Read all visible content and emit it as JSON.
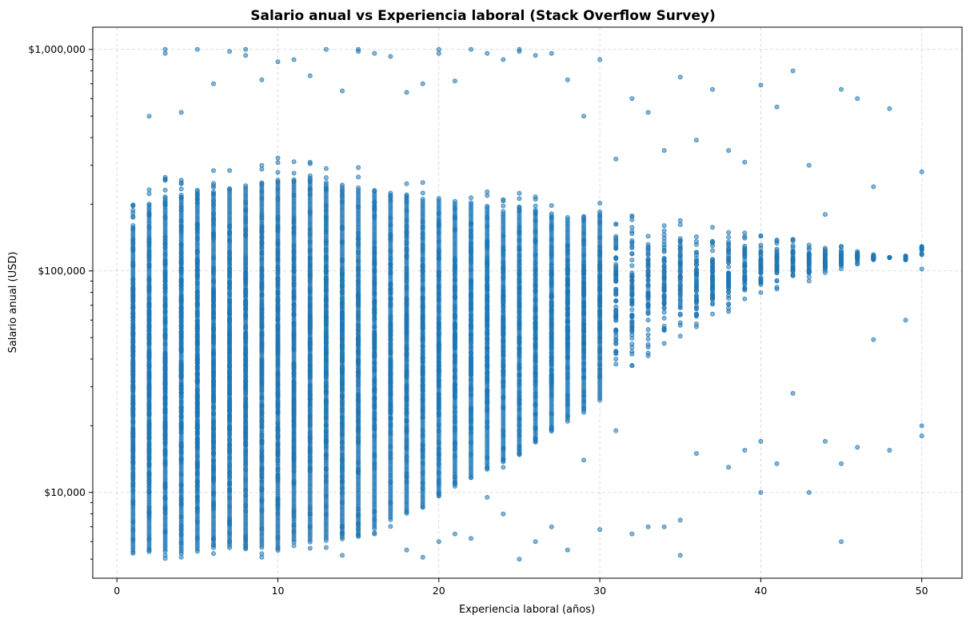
{
  "chart_data": {
    "type": "scatter",
    "title": "Salario anual vs Experiencia laboral (Stack Overflow Survey)",
    "xlabel": "Experiencia laboral (años)",
    "ylabel": "Salario anual (USD)",
    "xlim": [
      -1.5,
      52.5
    ],
    "ylim": [
      4100,
      1260000
    ],
    "yscale": "log",
    "grid": true,
    "x_ticks": [
      0,
      10,
      20,
      30,
      40,
      50
    ],
    "x_tick_labels": [
      "0",
      "10",
      "20",
      "30",
      "40",
      "50"
    ],
    "y_ticks": [
      10000,
      100000,
      1000000
    ],
    "y_tick_labels": [
      "$10,000",
      "$100,000",
      "$1,000,000"
    ],
    "color": "#1f77b4",
    "series": [
      {
        "x_values": [
          1,
          2,
          3,
          4,
          5,
          6,
          7,
          8,
          9,
          10,
          11,
          12,
          13,
          14,
          15,
          16,
          17,
          18,
          19,
          20,
          21,
          22,
          23,
          24,
          25,
          26,
          27,
          28,
          29,
          30,
          31,
          32,
          33,
          34,
          35,
          36,
          37,
          38,
          39,
          40,
          41,
          42,
          43,
          44,
          45,
          46,
          47,
          48,
          49,
          50
        ],
        "dense_min": [
          5000,
          5000,
          5000,
          5000,
          5000,
          5200,
          5200,
          5200,
          5200,
          5200,
          5500,
          5500,
          5600,
          5800,
          6000,
          6500,
          7000,
          7500,
          8000,
          9000,
          10000,
          11000,
          12000,
          13000,
          14000,
          16000,
          18000,
          20000,
          22000,
          25000,
          30000,
          35000,
          40000,
          45000,
          50000,
          55000,
          60000,
          65000,
          70000,
          75000,
          80000,
          85000,
          90000,
          95000,
          100000,
          105000,
          110000,
          115000,
          120000,
          100000
        ],
        "dense_max": [
          200000,
          250000,
          270000,
          280000,
          290000,
          290000,
          300000,
          310000,
          320000,
          330000,
          330000,
          330000,
          320000,
          310000,
          300000,
          290000,
          280000,
          270000,
          260000,
          260000,
          250000,
          240000,
          230000,
          220000,
          230000,
          220000,
          210000,
          200000,
          200000,
          210000,
          200000,
          190000,
          180000,
          175000,
          170000,
          160000,
          160000,
          155000,
          150000,
          150000,
          145000,
          140000,
          135000,
          130000,
          130000,
          125000,
          120000,
          115000,
          110000,
          150000
        ],
        "outliers": [
          [
            3,
            1000000
          ],
          [
            3,
            960000
          ],
          [
            5,
            1000000
          ],
          [
            7,
            980000
          ],
          [
            8,
            1000000
          ],
          [
            8,
            940000
          ],
          [
            10,
            880000
          ],
          [
            11,
            900000
          ],
          [
            13,
            1000000
          ],
          [
            15,
            1000000
          ],
          [
            15,
            980000
          ],
          [
            16,
            960000
          ],
          [
            17,
            930000
          ],
          [
            20,
            1000000
          ],
          [
            20,
            960000
          ],
          [
            22,
            1000000
          ],
          [
            23,
            960000
          ],
          [
            25,
            1000000
          ],
          [
            25,
            980000
          ],
          [
            26,
            940000
          ],
          [
            27,
            960000
          ],
          [
            30,
            900000
          ],
          [
            42,
            800000
          ],
          [
            35,
            750000
          ],
          [
            37,
            660000
          ],
          [
            40,
            690000
          ],
          [
            45,
            660000
          ],
          [
            46,
            600000
          ],
          [
            48,
            540000
          ],
          [
            41,
            550000
          ],
          [
            32,
            600000
          ],
          [
            28,
            730000
          ],
          [
            2,
            500000
          ],
          [
            4,
            520000
          ],
          [
            6,
            700000
          ],
          [
            9,
            730000
          ],
          [
            12,
            760000
          ],
          [
            14,
            650000
          ],
          [
            18,
            640000
          ],
          [
            19,
            700000
          ],
          [
            21,
            720000
          ],
          [
            24,
            900000
          ],
          [
            29,
            500000
          ],
          [
            31,
            320000
          ],
          [
            33,
            520000
          ],
          [
            34,
            350000
          ],
          [
            36,
            390000
          ],
          [
            38,
            350000
          ],
          [
            39,
            310000
          ],
          [
            43,
            300000
          ],
          [
            44,
            180000
          ],
          [
            47,
            240000
          ],
          [
            49,
            112000
          ],
          [
            50,
            280000
          ],
          [
            2,
            5500
          ],
          [
            3,
            5200
          ],
          [
            4,
            5100
          ],
          [
            6,
            5300
          ],
          [
            9,
            5100
          ],
          [
            12,
            5600
          ],
          [
            14,
            5200
          ],
          [
            16,
            6500
          ],
          [
            17,
            9000
          ],
          [
            18,
            5500
          ],
          [
            19,
            5100
          ],
          [
            20,
            6000
          ],
          [
            21,
            6500
          ],
          [
            22,
            6200
          ],
          [
            23,
            9500
          ],
          [
            24,
            8000
          ],
          [
            25,
            5000
          ],
          [
            26,
            6000
          ],
          [
            27,
            7000
          ],
          [
            28,
            5500
          ],
          [
            29,
            14000
          ],
          [
            30,
            6800
          ],
          [
            31,
            19000
          ],
          [
            32,
            6500
          ],
          [
            33,
            7000
          ],
          [
            34,
            7000
          ],
          [
            35,
            5200
          ],
          [
            36,
            15000
          ],
          [
            38,
            13000
          ],
          [
            39,
            15500
          ],
          [
            40,
            10000
          ],
          [
            41,
            13500
          ],
          [
            42,
            28000
          ],
          [
            43,
            10000
          ],
          [
            44,
            17000
          ],
          [
            45,
            6000
          ],
          [
            45,
            13500
          ],
          [
            46,
            16000
          ],
          [
            47,
            49000
          ],
          [
            48,
            15500
          ],
          [
            49,
            60000
          ],
          [
            50,
            18000
          ],
          [
            50,
            20000
          ],
          [
            35,
            7500
          ],
          [
            40,
            17000
          ]
        ]
      }
    ]
  }
}
